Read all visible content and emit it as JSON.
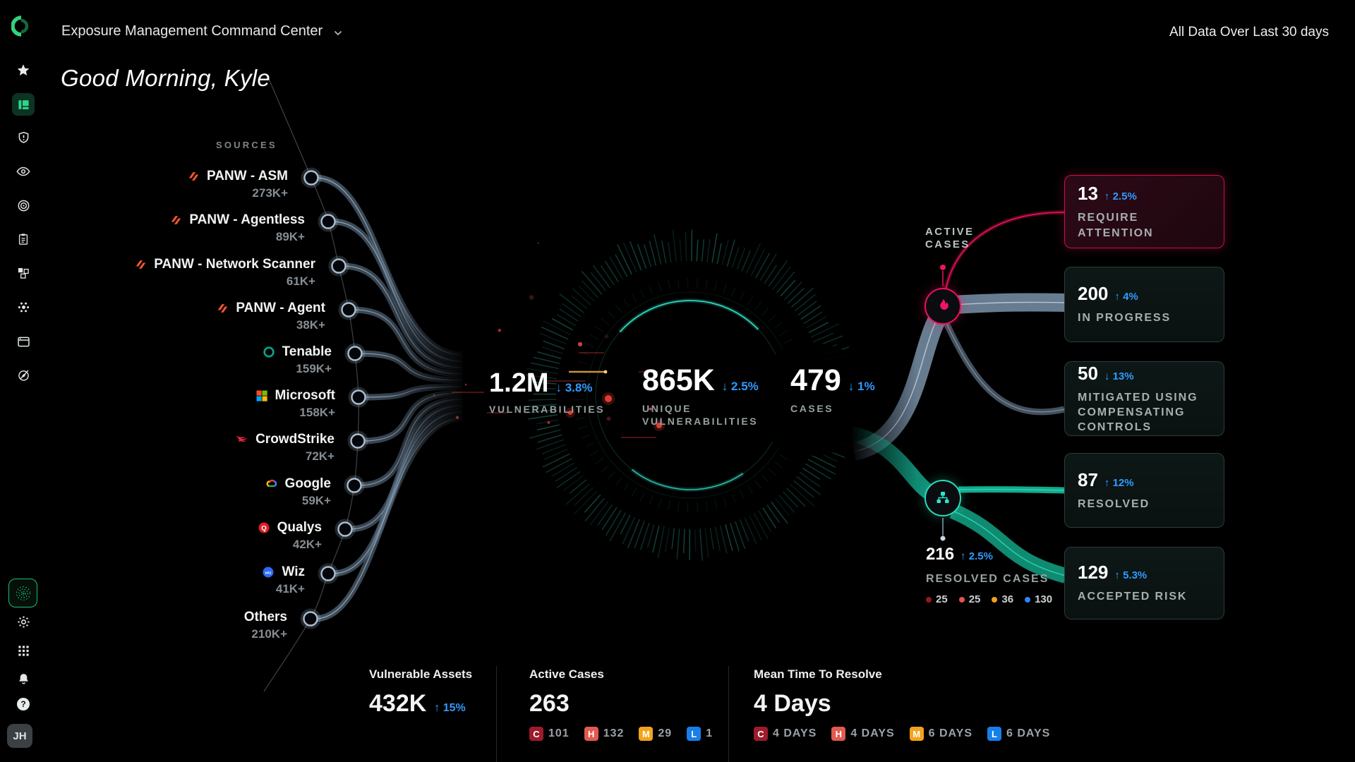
{
  "header": {
    "title": "Exposure Management Command Center",
    "time_filter": "All Data Over Last 30 days",
    "greeting": "Good Morning, Kyle"
  },
  "sidebar": {
    "avatar": "JH",
    "help_glyph": "?"
  },
  "sources": {
    "label": "SOURCES",
    "items": [
      {
        "name": "PANW - ASM",
        "count": "273K+",
        "icon": "panw-icon"
      },
      {
        "name": "PANW - Agentless",
        "count": "89K+",
        "icon": "panw-icon"
      },
      {
        "name": "PANW - Network Scanner",
        "count": "61K+",
        "icon": "panw-icon"
      },
      {
        "name": "PANW - Agent",
        "count": "38K+",
        "icon": "panw-icon"
      },
      {
        "name": "Tenable",
        "count": "159K+",
        "icon": "tenable-icon"
      },
      {
        "name": "Microsoft",
        "count": "158K+",
        "icon": "microsoft-icon"
      },
      {
        "name": "CrowdStrike",
        "count": "72K+",
        "icon": "crowdstrike-icon"
      },
      {
        "name": "Google",
        "count": "59K+",
        "icon": "google-cloud-icon"
      },
      {
        "name": "Qualys",
        "count": "42K+",
        "icon": "qualys-icon"
      },
      {
        "name": "Wiz",
        "count": "41K+",
        "icon": "wiz-icon"
      },
      {
        "name": "Others",
        "count": "210K+",
        "icon": null
      }
    ]
  },
  "funnel": {
    "vulnerabilities": {
      "value": "1.2M",
      "arrow": "↓",
      "trend": "3.8%",
      "label": "VULNERABILITIES"
    },
    "unique": {
      "value": "865K",
      "arrow": "↓",
      "trend": "2.5%",
      "label_line1": "UNIQUE",
      "label_line2": "VULNERABILITIES"
    },
    "cases": {
      "value": "479",
      "arrow": "↓",
      "trend": "1%",
      "label": "CASES"
    }
  },
  "active_node": {
    "label_line1": "ACTIVE",
    "label_line2": "CASES"
  },
  "resolved_node": {
    "value": "216",
    "arrow": "↑",
    "trend": "2.5%",
    "label": "RESOLVED CASES",
    "severities": [
      {
        "count": "25"
      },
      {
        "count": "25"
      },
      {
        "count": "36"
      },
      {
        "count": "130"
      }
    ]
  },
  "cards": [
    {
      "value": "13",
      "arrow": "↑",
      "trend": "2.5%",
      "label": "REQUIRE ATTENTION"
    },
    {
      "value": "200",
      "arrow": "↑",
      "trend": "4%",
      "label": "IN PROGRESS"
    },
    {
      "value": "50",
      "arrow": "↓",
      "trend": "13%",
      "label": "MITIGATED USING COMPENSATING CONTROLS"
    },
    {
      "value": "87",
      "arrow": "↑",
      "trend": "12%",
      "label": "RESOLVED"
    },
    {
      "value": "129",
      "arrow": "↑",
      "trend": "5.3%",
      "label": "ACCEPTED RISK"
    }
  ],
  "footer": {
    "stats": [
      {
        "title": "Vulnerable Assets",
        "value": "432K",
        "arrow": "↑",
        "trend": "15%"
      },
      {
        "title": "Active Cases",
        "value": "263",
        "badges": [
          {
            "letter": "C",
            "text": "101"
          },
          {
            "letter": "H",
            "text": "132"
          },
          {
            "letter": "M",
            "text": "29"
          },
          {
            "letter": "L",
            "text": "1"
          }
        ]
      },
      {
        "title": "Mean Time To Resolve",
        "value": "4 Days",
        "badges": [
          {
            "letter": "C",
            "text": "4 DAYS"
          },
          {
            "letter": "H",
            "text": "4 DAYS"
          },
          {
            "letter": "M",
            "text": "6 DAYS"
          },
          {
            "letter": "L",
            "text": "6 DAYS"
          }
        ]
      }
    ]
  },
  "colors": {
    "accent_blue": "#2F9BFF",
    "crimson": "#ED1060",
    "teal": "#27DCBA",
    "panw_orange": "#FA582D",
    "severity_badge": {
      "critical": "#9E1B2C",
      "high": "#E25A50",
      "medium": "#F2A31B",
      "low": "#187FE8"
    },
    "severity_dots": [
      "#941A1F",
      "#E2544D",
      "#F0A11F",
      "#2F86F6"
    ]
  }
}
